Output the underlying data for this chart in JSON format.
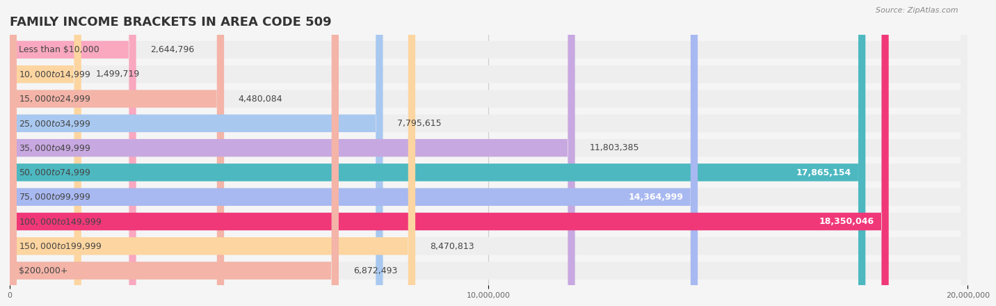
{
  "title": "FAMILY INCOME BRACKETS IN AREA CODE 509",
  "source": "Source: ZipAtlas.com",
  "categories": [
    "Less than $10,000",
    "$10,000 to $14,999",
    "$15,000 to $24,999",
    "$25,000 to $34,999",
    "$35,000 to $49,999",
    "$50,000 to $74,999",
    "$75,000 to $99,999",
    "$100,000 to $149,999",
    "$150,000 to $199,999",
    "$200,000+"
  ],
  "values": [
    2644796,
    1499719,
    4480084,
    7795615,
    11803385,
    17865154,
    14364999,
    18350046,
    8470813,
    6872493
  ],
  "bar_colors": [
    "#f9a8c0",
    "#fdd5a0",
    "#f4b4a8",
    "#a8c8f0",
    "#c8a8e0",
    "#4db8c0",
    "#a8b8f0",
    "#f03878",
    "#fdd5a0",
    "#f4b4a8"
  ],
  "label_colors": [
    "#555555",
    "#555555",
    "#555555",
    "#555555",
    "#555555",
    "#ffffff",
    "#ffffff",
    "#ffffff",
    "#555555",
    "#555555"
  ],
  "value_labels": [
    "2,644,796",
    "1,499,719",
    "4,480,084",
    "7,795,615",
    "11,803,385",
    "17,865,154",
    "14,364,999",
    "18,350,046",
    "8,470,813",
    "6,872,493"
  ],
  "xlim": [
    0,
    20000000
  ],
  "xticks": [
    0,
    10000000,
    20000000
  ],
  "xtick_labels": [
    "0",
    "10,000,000",
    "20,000,000"
  ],
  "background_color": "#f5f5f5",
  "bar_background_color": "#eeeeee",
  "title_fontsize": 13,
  "label_fontsize": 9,
  "value_fontsize": 9
}
